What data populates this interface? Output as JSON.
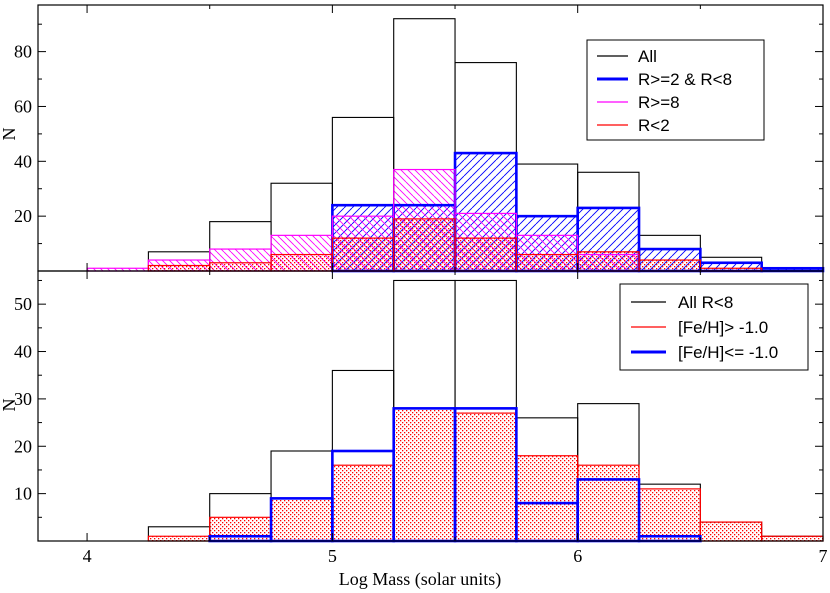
{
  "figure": {
    "xlabel": "Log Mass (solar units)",
    "bin_edges": [
      3.75,
      4.0,
      4.25,
      4.5,
      4.75,
      5.0,
      5.25,
      5.5,
      5.75,
      6.0,
      6.25,
      6.5,
      6.75,
      7.0
    ],
    "xlim": [
      3.8,
      7.0
    ],
    "xticks": [
      4,
      5,
      6,
      7
    ],
    "xtick_labels": [
      "4",
      "5",
      "6",
      "7"
    ]
  },
  "chart_data": [
    {
      "type": "histogram",
      "panel": "top",
      "ylabel": "N",
      "ylim": [
        0,
        97
      ],
      "yticks": [
        20,
        40,
        60,
        80
      ],
      "ytick_labels": [
        "20",
        "40",
        "60",
        "80"
      ],
      "legend_position": "top-right",
      "series": [
        {
          "name": "All",
          "color": "#000000",
          "fill": "none",
          "values": [
            0,
            0,
            7,
            18,
            32,
            56,
            92,
            76,
            39,
            36,
            13,
            5,
            1
          ]
        },
        {
          "name": "R>=2 & R<8",
          "color": "#0000ff",
          "fill": "hatch-back",
          "values": [
            0,
            0,
            0,
            0,
            0,
            24,
            24,
            43,
            20,
            23,
            8,
            3,
            1
          ]
        },
        {
          "name": "R>=8",
          "color": "#ff00ff",
          "fill": "hatch-forward",
          "values": [
            0,
            1,
            4,
            8,
            13,
            20,
            37,
            21,
            13,
            6,
            0,
            0,
            0
          ]
        },
        {
          "name": "R<2",
          "color": "#ff0000",
          "fill": "dots",
          "values": [
            0,
            0,
            2,
            3,
            6,
            12,
            19,
            12,
            6,
            7,
            4,
            1,
            0
          ]
        }
      ]
    },
    {
      "type": "histogram",
      "panel": "bottom",
      "ylabel": "N",
      "ylim": [
        0,
        57
      ],
      "yticks": [
        10,
        20,
        30,
        40,
        50
      ],
      "ytick_labels": [
        "10",
        "20",
        "30",
        "40",
        "50"
      ],
      "legend_position": "top-right",
      "series": [
        {
          "name": "All R<8",
          "color": "#000000",
          "fill": "none",
          "values": [
            0,
            0,
            3,
            10,
            19,
            36,
            55,
            55,
            26,
            29,
            12,
            4,
            1
          ]
        },
        {
          "name": "[Fe/H]> -1.0",
          "color": "#ff0000",
          "fill": "dots",
          "values": [
            0,
            0,
            1,
            5,
            9,
            16,
            28,
            27,
            18,
            16,
            11,
            4,
            1
          ]
        },
        {
          "name": "[Fe/H]<= -1.0",
          "color": "#0000ff",
          "fill": "none",
          "values": [
            0,
            0,
            0,
            1,
            9,
            19,
            28,
            28,
            8,
            13,
            1,
            0,
            0
          ]
        }
      ]
    }
  ]
}
